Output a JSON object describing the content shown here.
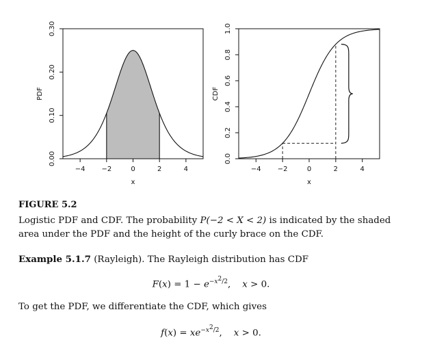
{
  "figure": {
    "label": "FIGURE 5.2",
    "caption_parts": [
      "Logistic PDF and CDF. The probability ",
      "P(−2 < X < 2)",
      " is indicated by the shaded area under the PDF and the height of the curly brace on the CDF."
    ]
  },
  "chart_data": [
    {
      "type": "line",
      "title": "",
      "xlabel": "x",
      "ylabel": "PDF",
      "xlim": [
        -5.3,
        5.3
      ],
      "ylim": [
        0,
        0.3
      ],
      "xticks": [
        "−4",
        "−2",
        "0",
        "2",
        "4"
      ],
      "yticks": [
        "0.00",
        "0.10",
        "0.20",
        "0.30"
      ],
      "series": [
        {
          "function": "logistic PDF",
          "x": [
            -5,
            -4,
            -3,
            -2,
            -1,
            0,
            1,
            2,
            3,
            4,
            5
          ],
          "y": [
            0.0066,
            0.0177,
            0.0452,
            0.105,
            0.1966,
            0.25,
            0.1966,
            0.105,
            0.0452,
            0.0177,
            0.0066
          ]
        }
      ],
      "shaded_region": {
        "from": -2,
        "to": 2
      }
    },
    {
      "type": "line",
      "title": "",
      "xlabel": "x",
      "ylabel": "CDF",
      "xlim": [
        -5.3,
        5.3
      ],
      "ylim": [
        0,
        1.0
      ],
      "xticks": [
        "−4",
        "−2",
        "0",
        "2",
        "4"
      ],
      "yticks": [
        "0.0",
        "0.2",
        "0.4",
        "0.6",
        "0.8",
        "1.0"
      ],
      "series": [
        {
          "function": "logistic CDF",
          "x": [
            -5,
            -4,
            -3,
            -2,
            -1,
            0,
            1,
            2,
            3,
            4,
            5
          ],
          "y": [
            0.0067,
            0.018,
            0.0474,
            0.1192,
            0.2689,
            0.5,
            0.7311,
            0.8808,
            0.9526,
            0.982,
            0.9933
          ]
        }
      ],
      "annotations": [
        "dashed lines at x = −2 and x = 2",
        "curly brace spanning F(−2) to F(2)"
      ]
    }
  ],
  "example": {
    "heading": "Example 5.1.7",
    "name": " (Rayleigh).",
    "text": " The Rayleigh distribution has CDF",
    "cdf_equation": "F(x) = 1 − e^{−x²/2},   x > 0.",
    "middle_text": "To get the PDF, we differentiate the CDF, which gives",
    "pdf_equation": "f(x) = xe^{−x²/2},   x > 0."
  }
}
